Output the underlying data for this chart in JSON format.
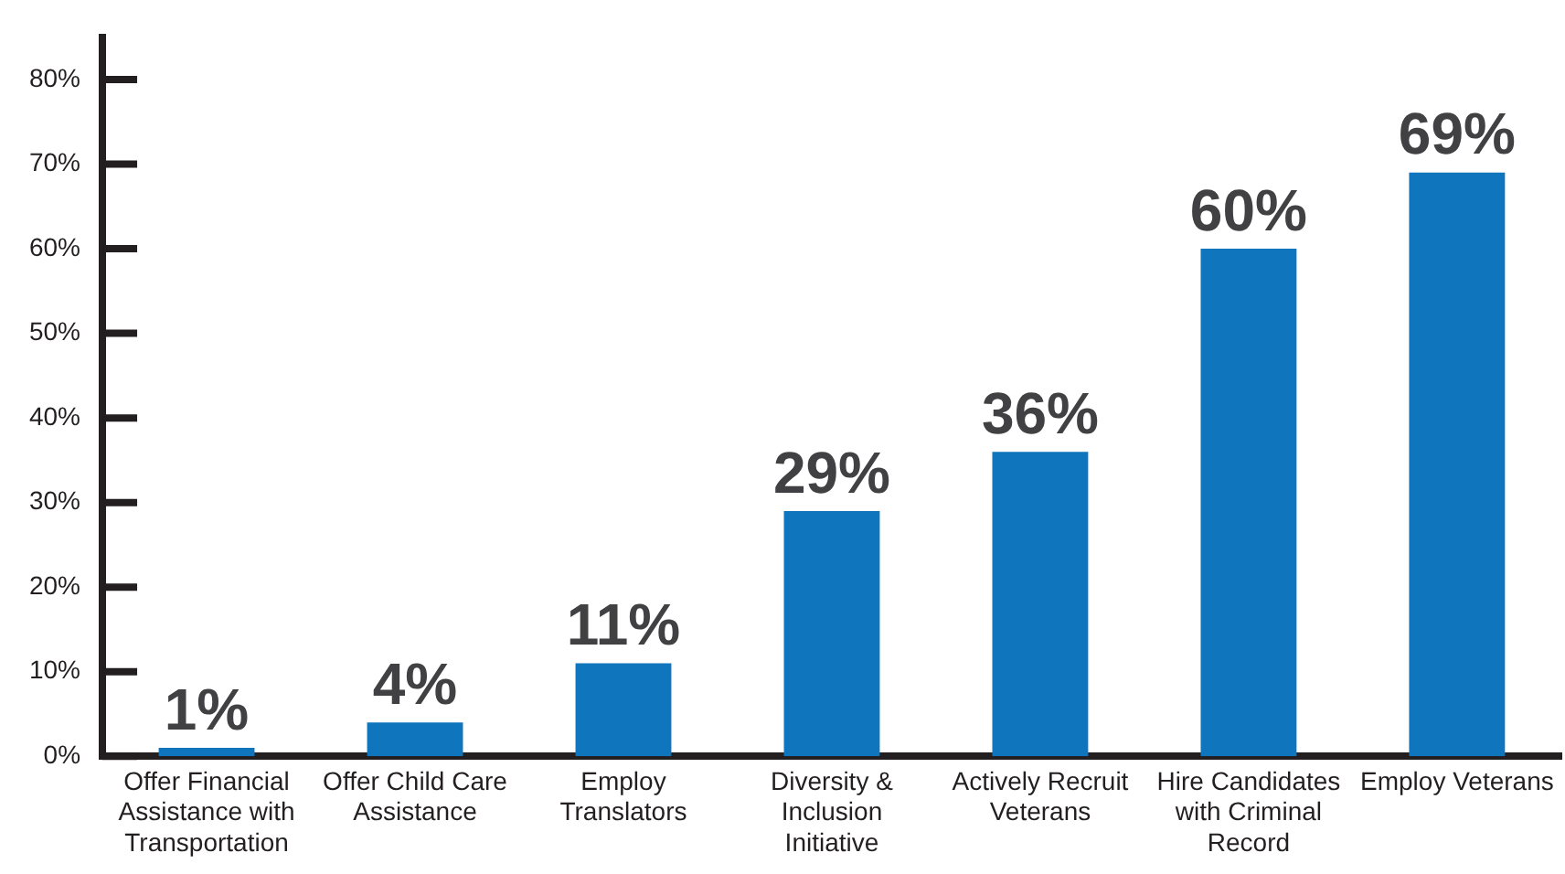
{
  "chart_data": {
    "type": "bar",
    "categories": [
      "Offer Financial Assistance with Transportation",
      "Offer Child Care Assistance",
      "Employ Translators",
      "Diversity & Inclusion Initiative",
      "Actively Recruit Veterans",
      "Hire Candidates with Criminal Record",
      "Employ Veterans"
    ],
    "values": [
      1,
      4,
      11,
      29,
      36,
      60,
      69
    ],
    "value_labels": [
      "1%",
      "4%",
      "11%",
      "29%",
      "36%",
      "60%",
      "69%"
    ],
    "color": "#0f75bc",
    "ylim": [
      0,
      85
    ],
    "yticks": [
      {
        "value": 0,
        "label": "0%"
      },
      {
        "value": 10,
        "label": "10%"
      },
      {
        "value": 20,
        "label": "20%"
      },
      {
        "value": 30,
        "label": "30%"
      },
      {
        "value": 40,
        "label": "40%"
      },
      {
        "value": 50,
        "label": "50%"
      },
      {
        "value": 60,
        "label": "60%"
      },
      {
        "value": 70,
        "label": "70%"
      },
      {
        "value": 80,
        "label": "80%"
      }
    ],
    "grid": false,
    "legend": false
  }
}
